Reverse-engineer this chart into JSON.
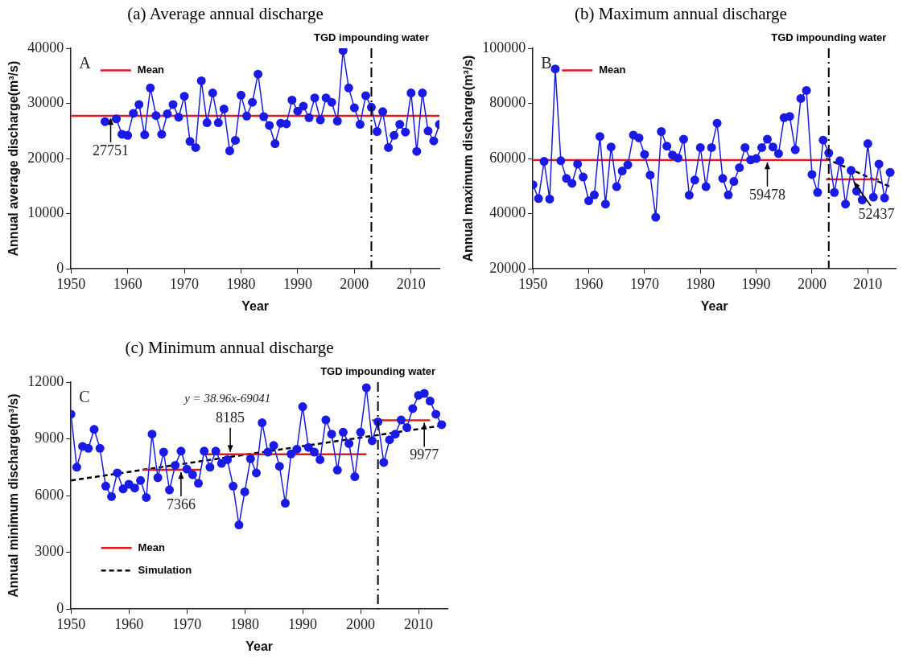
{
  "chart_data": [
    {
      "type": "line",
      "title": "(a) Average annual discharge",
      "xlabel": "Year",
      "ylabel": "Annual average discharge(m³/s)",
      "xlim": [
        1950,
        2015
      ],
      "xticks": [
        1950,
        1960,
        1970,
        1980,
        1990,
        2000,
        2010
      ],
      "ylim": [
        0,
        40000
      ],
      "yticks": [
        0,
        10000,
        20000,
        30000,
        40000
      ],
      "marker": "circle",
      "legend": "top left",
      "x": [
        1956,
        1958,
        1959,
        1960,
        1961,
        1962,
        1963,
        1964,
        1965,
        1966,
        1967,
        1968,
        1969,
        1970,
        1971,
        1972,
        1973,
        1974,
        1975,
        1976,
        1977,
        1978,
        1979,
        1980,
        1981,
        1982,
        1983,
        1984,
        1985,
        1986,
        1987,
        1988,
        1989,
        1990,
        1991,
        1992,
        1993,
        1994,
        1995,
        1996,
        1997,
        1998,
        1999,
        2000,
        2001,
        2002,
        2003,
        2004,
        2005,
        2006,
        2007,
        2008,
        2009,
        2010,
        2011,
        2012,
        2013,
        2014,
        2015
      ],
      "series": [
        {
          "color": "#1a1ae6",
          "values": [
            26700,
            27200,
            24400,
            24200,
            28200,
            29800,
            24300,
            32800,
            27800,
            24400,
            28100,
            29800,
            27500,
            31300,
            23100,
            22000,
            34100,
            26500,
            31900,
            26500,
            29000,
            21400,
            23300,
            31500,
            27700,
            30200,
            35300,
            27600,
            26000,
            22700,
            26400,
            26300,
            30600,
            28600,
            29500,
            27400,
            31000,
            27000,
            31000,
            30200,
            26800,
            39600,
            32800,
            29200,
            26200,
            31400,
            29300,
            24900,
            28500,
            22000,
            24200,
            26200,
            24800,
            31900,
            21300,
            31900,
            25000,
            23200,
            26200
          ]
        },
        {
          "name": "Mean",
          "color": "#e31a1c",
          "marker": "none",
          "x": [
            1950,
            2015
          ],
          "values": [
            27751,
            27751
          ]
        }
      ],
      "ref_lines": [
        {
          "axis": "x",
          "value": 2003,
          "label": "TGD impounding water"
        }
      ],
      "annotations": [
        "A",
        {
          "text": "27751",
          "x": 1957,
          "y": 27751
        }
      ]
    },
    {
      "type": "line",
      "title": "(b) Maximum annual discharge",
      "xlabel": "Year",
      "ylabel": "Annual maximum discharge(m³/s)",
      "xlim": [
        1950,
        2015
      ],
      "xticks": [
        1950,
        1960,
        1970,
        1980,
        1990,
        2000,
        2010
      ],
      "ylim": [
        20000,
        100000
      ],
      "yticks": [
        20000,
        40000,
        60000,
        80000,
        100000
      ],
      "marker": "circle",
      "legend": "top left",
      "x": [
        1950,
        1951,
        1952,
        1953,
        1954,
        1955,
        1956,
        1957,
        1958,
        1959,
        1960,
        1961,
        1962,
        1963,
        1964,
        1965,
        1966,
        1967,
        1968,
        1969,
        1970,
        1971,
        1972,
        1973,
        1974,
        1975,
        1976,
        1977,
        1978,
        1979,
        1980,
        1981,
        1982,
        1983,
        1984,
        1985,
        1986,
        1987,
        1988,
        1989,
        1990,
        1991,
        1992,
        1993,
        1994,
        1995,
        1996,
        1997,
        1998,
        1999,
        2000,
        2001,
        2002,
        2003,
        2004,
        2005,
        2006,
        2007,
        2008,
        2009,
        2010,
        2011,
        2012,
        2013,
        2014
      ],
      "series": [
        {
          "color": "#1a1ae6",
          "values": [
            50500,
            45500,
            59000,
            45300,
            92500,
            59200,
            52800,
            51000,
            58000,
            53300,
            44700,
            46800,
            68000,
            43500,
            64200,
            49800,
            55500,
            57700,
            68500,
            67500,
            61500,
            54000,
            38700,
            69800,
            64500,
            61300,
            60200,
            67000,
            46700,
            52200,
            64000,
            49800,
            64000,
            72800,
            52800,
            46800,
            51700,
            56700,
            64000,
            59500,
            60000,
            64000,
            67000,
            64200,
            61800,
            74800,
            75300,
            63200,
            81800,
            84700,
            54200,
            47700,
            66700,
            62000,
            47700,
            59200,
            43500,
            55700,
            48200,
            45000,
            65400,
            46000,
            58000,
            45700,
            55000
          ]
        },
        {
          "name": "Mean",
          "color": "#e31a1c",
          "marker": "none",
          "x": [
            1950,
            2003
          ],
          "values": [
            59478,
            59478
          ]
        },
        {
          "color": "#e31a1c",
          "marker": "none",
          "x": [
            2002.5,
            2012
          ],
          "values": [
            52437,
            52437
          ]
        },
        {
          "color": "#000000",
          "marker": "none",
          "line_style": "dashed",
          "x": [
            2002.5,
            2014.3
          ],
          "values": [
            60000,
            49500
          ]
        }
      ],
      "ref_lines": [
        {
          "axis": "x",
          "value": 2003,
          "label": "TGD impounding water"
        }
      ],
      "annotations": [
        "B",
        {
          "text": "59478",
          "x": 1992,
          "y": 59478
        },
        {
          "text": "52437",
          "x": 2007.5,
          "y": 52437
        }
      ]
    },
    {
      "type": "line",
      "title": "(c) Minimum annual discharge",
      "xlabel": "Year",
      "ylabel": "Annual minimum discharge(m³/s)",
      "xlim": [
        1950,
        2015
      ],
      "xticks": [
        1950,
        1960,
        1970,
        1980,
        1990,
        2000,
        2010
      ],
      "ylim": [
        0,
        12000
      ],
      "yticks": [
        0,
        3000,
        6000,
        9000,
        12000
      ],
      "marker": "circle",
      "legend": "bottom left",
      "x": [
        1950,
        1951,
        1952,
        1953,
        1954,
        1955,
        1956,
        1957,
        1958,
        1959,
        1960,
        1961,
        1962,
        1963,
        1964,
        1965,
        1966,
        1967,
        1968,
        1969,
        1970,
        1971,
        1972,
        1973,
        1974,
        1975,
        1976,
        1977,
        1978,
        1979,
        1980,
        1981,
        1982,
        1983,
        1984,
        1985,
        1986,
        1987,
        1988,
        1989,
        1990,
        1991,
        1992,
        1993,
        1994,
        1995,
        1996,
        1997,
        1998,
        1999,
        2000,
        2001,
        2002,
        2003,
        2004,
        2005,
        2006,
        2007,
        2008,
        2009,
        2010,
        2011,
        2012,
        2013,
        2014
      ],
      "series": [
        {
          "color": "#1a1ae6",
          "values": [
            10300,
            7500,
            8600,
            8500,
            9500,
            8500,
            6500,
            5950,
            7200,
            6350,
            6600,
            6400,
            6800,
            5900,
            9250,
            6950,
            8300,
            6300,
            7600,
            8350,
            7400,
            7100,
            6650,
            8350,
            7500,
            8350,
            7700,
            7900,
            6500,
            4450,
            6200,
            7950,
            7200,
            9850,
            8300,
            8650,
            7550,
            5600,
            8200,
            8450,
            10700,
            8550,
            8300,
            7900,
            10000,
            9250,
            7350,
            9350,
            8750,
            7000,
            9350,
            11700,
            8900,
            9900,
            7750,
            8950,
            9250,
            10000,
            9600,
            10600,
            11300,
            11400,
            11000,
            10300,
            9750
          ]
        },
        {
          "name": "Mean",
          "color": "#e31a1c",
          "marker": "none",
          "x": [
            1962.5,
            1972.5
          ],
          "values": [
            7366,
            7366
          ]
        },
        {
          "color": "#e31a1c",
          "marker": "none",
          "x": [
            1973,
            2001
          ],
          "values": [
            8185,
            8185
          ]
        },
        {
          "color": "#e31a1c",
          "marker": "none",
          "x": [
            2002,
            2012
          ],
          "values": [
            9977,
            9977
          ]
        },
        {
          "name": "Simulation",
          "color": "#000000",
          "marker": "none",
          "line_style": "dashed",
          "x": [
            1950,
            2014
          ],
          "values": [
            6800,
            9700
          ]
        }
      ],
      "ref_lines": [
        {
          "axis": "x",
          "value": 2003,
          "label": "TGD impounding water"
        }
      ],
      "annotations": [
        "C",
        "y = 38.96x-69041",
        {
          "text": "7366",
          "x": 1969,
          "y": 7366
        },
        {
          "text": "8185",
          "x": 1977.5,
          "y": 8185
        },
        {
          "text": "9977",
          "x": 2011,
          "y": 9977
        }
      ]
    }
  ]
}
